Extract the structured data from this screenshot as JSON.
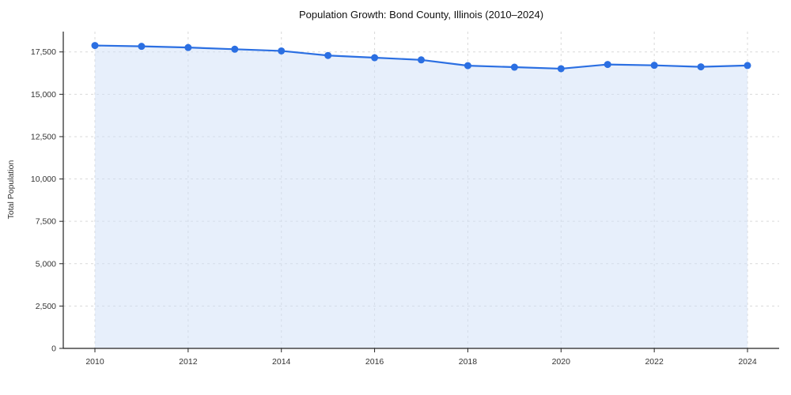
{
  "chart_data": {
    "type": "area",
    "title": "Population Growth: Bond County, Illinois (2010–2024)",
    "xlabel": "",
    "ylabel": "Total Population",
    "categories": [
      2010,
      2011,
      2012,
      2013,
      2014,
      2015,
      2016,
      2017,
      2018,
      2019,
      2020,
      2021,
      2022,
      2023,
      2024
    ],
    "series": [
      {
        "name": "Total Population",
        "values": [
          17880,
          17830,
          17760,
          17660,
          17560,
          17290,
          17160,
          17030,
          16690,
          16600,
          16510,
          16760,
          16710,
          16620,
          16700
        ]
      }
    ],
    "xlim": [
      2009.3,
      2024.7
    ],
    "ylim": [
      0,
      18700
    ],
    "xticks": [
      2010,
      2012,
      2014,
      2016,
      2018,
      2020,
      2022,
      2024
    ],
    "yticks": [
      0,
      2500,
      5000,
      7500,
      10000,
      12500,
      15000,
      17500
    ],
    "grid": "dashed-both",
    "legend": "none",
    "colors": {
      "line": "#2b6fe2",
      "marker": "#2b6fe2",
      "area_fill": "#cfe0f8",
      "area_opacity": 0.5,
      "gridline": "#d9d9d9",
      "axis": "#222222",
      "tick_text": "#333333"
    }
  }
}
